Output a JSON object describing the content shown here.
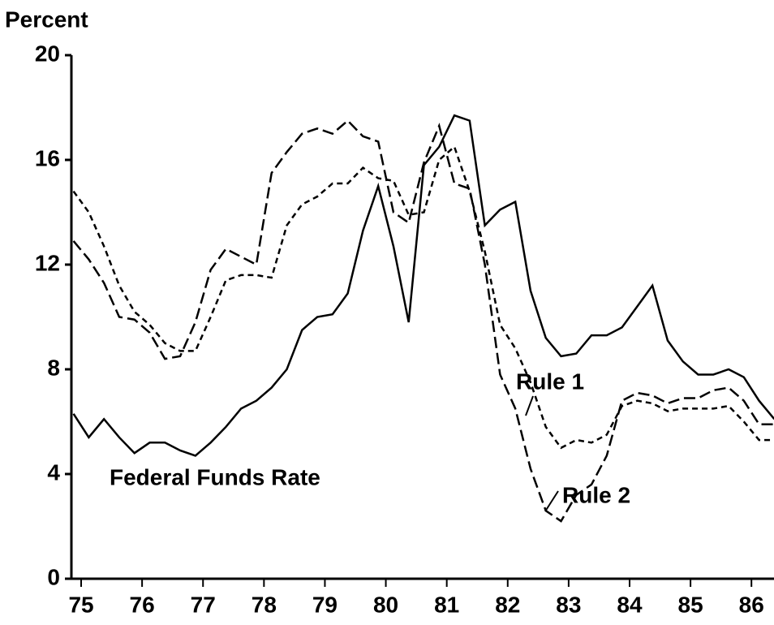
{
  "chart_data": {
    "type": "line",
    "y_axis_label": "Percent",
    "annotations": [
      "Federal Funds Rate",
      "Rule 1",
      "Rule 2"
    ],
    "x": [
      74.875,
      75.125,
      75.375,
      75.625,
      75.875,
      76.125,
      76.375,
      76.625,
      76.875,
      77.125,
      77.375,
      77.625,
      77.875,
      78.125,
      78.375,
      78.625,
      78.875,
      79.125,
      79.375,
      79.625,
      79.875,
      80.125,
      80.375,
      80.625,
      80.875,
      81.125,
      81.375,
      81.625,
      81.875,
      82.125,
      82.375,
      82.625,
      82.875,
      83.125,
      83.375,
      83.625,
      83.875,
      84.125,
      84.375,
      84.625,
      84.875,
      85.125,
      85.375,
      85.625,
      85.875,
      86.125,
      86.375
    ],
    "series": [
      {
        "name": "Federal Funds Rate",
        "color": "#000000",
        "dash": "solid",
        "values": [
          6.3,
          5.4,
          6.1,
          5.4,
          4.8,
          5.2,
          5.2,
          4.9,
          4.7,
          5.2,
          5.8,
          6.5,
          6.8,
          7.3,
          8.0,
          9.5,
          10.0,
          10.1,
          10.9,
          13.3,
          15.0,
          12.7,
          9.8,
          15.8,
          16.5,
          17.7,
          17.5,
          13.5,
          14.1,
          14.4,
          11.0,
          9.2,
          8.5,
          8.6,
          9.3,
          9.3,
          9.6,
          10.4,
          11.2,
          9.1,
          8.3,
          7.8,
          7.8,
          8.0,
          7.7,
          6.8,
          6.1
        ]
      },
      {
        "name": "Rule 1",
        "color": "#000000",
        "dash": "short",
        "values": [
          14.8,
          14.0,
          12.7,
          11.2,
          10.2,
          9.7,
          9.0,
          8.7,
          8.7,
          10.0,
          11.4,
          11.6,
          11.6,
          11.5,
          13.5,
          14.3,
          14.6,
          15.1,
          15.1,
          15.7,
          15.3,
          15.2,
          13.9,
          14.0,
          16.0,
          16.5,
          14.8,
          12.5,
          9.7,
          8.8,
          7.5,
          5.8,
          5.0,
          5.3,
          5.2,
          5.5,
          6.6,
          6.8,
          6.7,
          6.4,
          6.5,
          6.5,
          6.5,
          6.6,
          6.0,
          5.3,
          5.3
        ]
      },
      {
        "name": "Rule 2",
        "color": "#000000",
        "dash": "long",
        "values": [
          12.9,
          12.2,
          11.3,
          10.0,
          9.9,
          9.4,
          8.4,
          8.5,
          9.8,
          11.8,
          12.6,
          12.3,
          12.0,
          15.5,
          16.3,
          17.0,
          17.2,
          17.0,
          17.5,
          16.9,
          16.7,
          14.0,
          13.6,
          15.9,
          17.3,
          15.1,
          14.9,
          12.0,
          7.8,
          6.5,
          4.2,
          2.6,
          2.2,
          3.2,
          3.6,
          4.7,
          6.8,
          7.1,
          7.0,
          6.7,
          6.9,
          6.9,
          7.2,
          7.3,
          6.8,
          5.9,
          5.9
        ]
      }
    ],
    "xlim": [
      74.84,
      86.37
    ],
    "xticks": [
      75,
      76,
      77,
      78,
      79,
      80,
      81,
      82,
      83,
      84,
      85,
      86
    ],
    "ylim": [
      0,
      20
    ],
    "yticks": [
      0,
      4,
      8,
      12,
      16,
      20
    ],
    "grid": false
  }
}
